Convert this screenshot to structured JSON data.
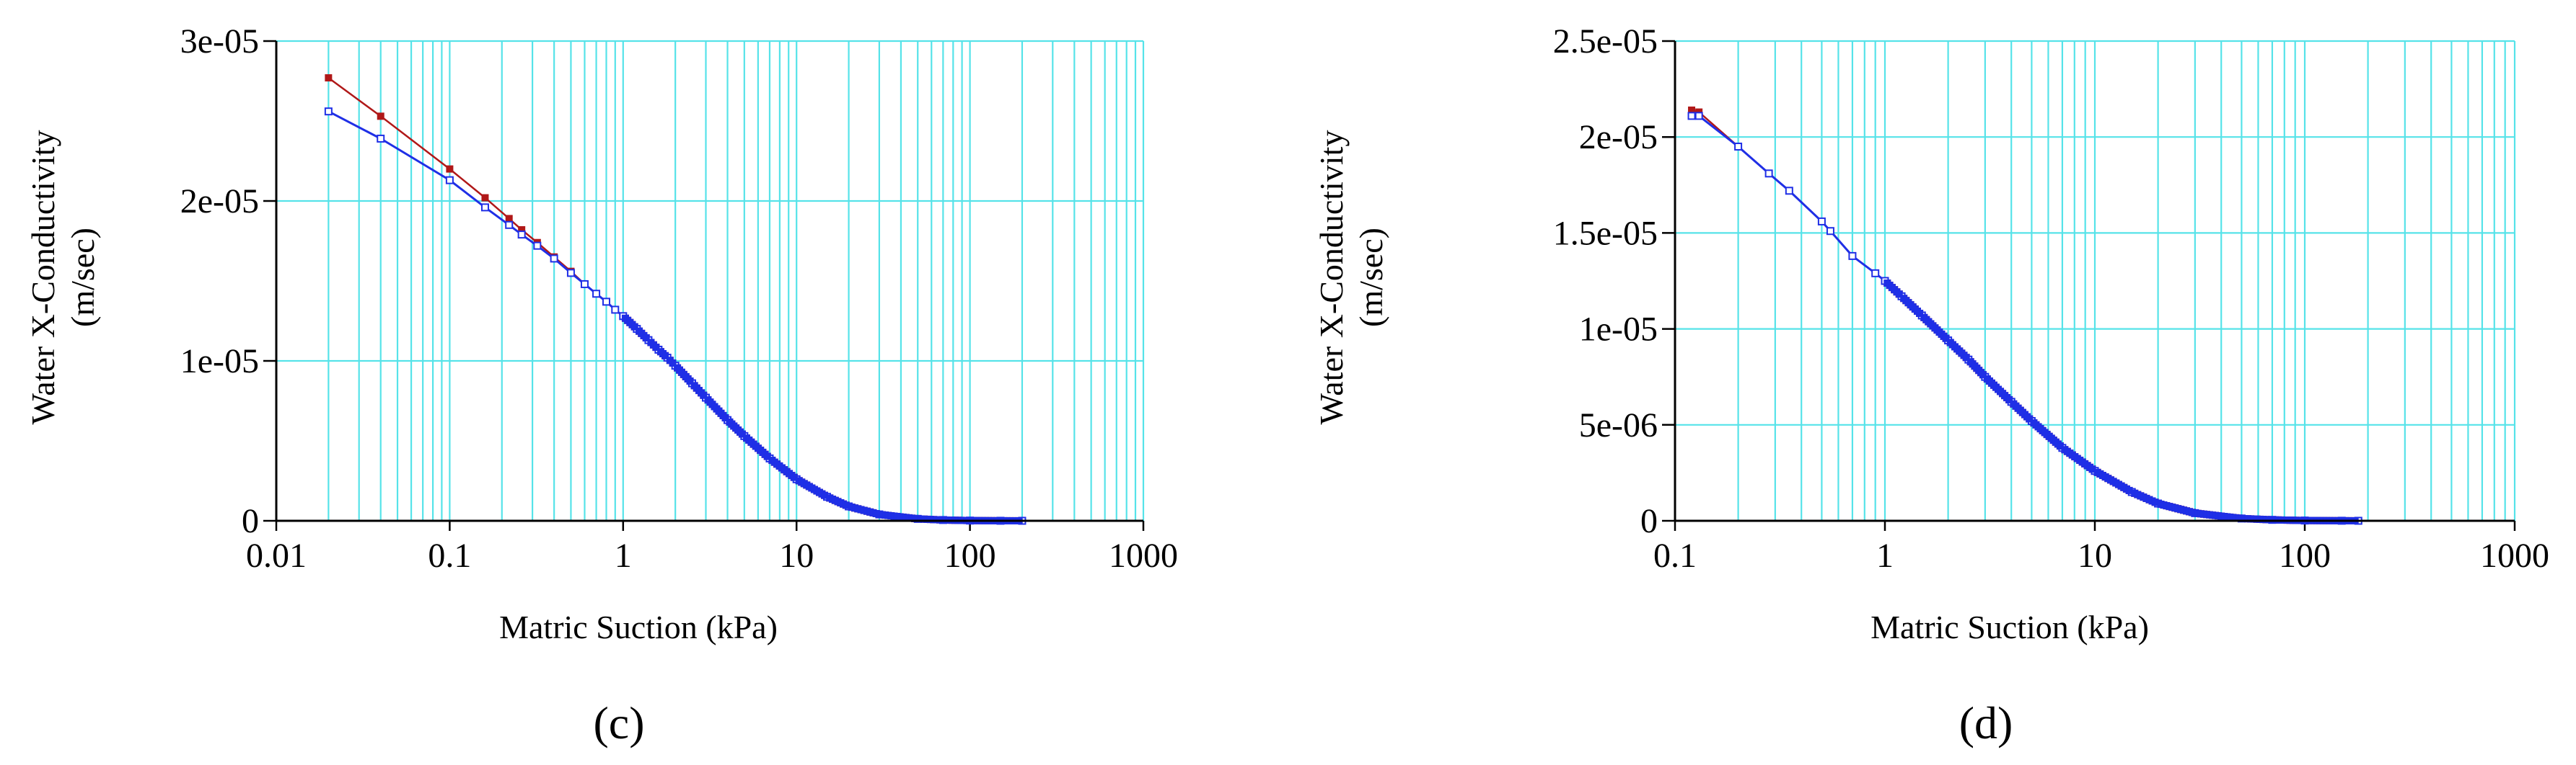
{
  "chart_data": [
    {
      "type": "line",
      "panel_label": "(c)",
      "xlabel": "Matric Suction (kPa)",
      "ylabel": [
        "Water X-Conductivity",
        "(m/sec)"
      ],
      "x_scale": "log",
      "xlim": [
        0.01,
        1000
      ],
      "ylim": [
        0,
        3e-05
      ],
      "x_ticks": [
        "0.01",
        "0.1",
        "1",
        "10",
        "100",
        "1000"
      ],
      "y_ticks": [
        "0",
        "1e-05",
        "2e-05",
        "3e-05"
      ],
      "grid": true,
      "colors": {
        "grid": "#56e3e9",
        "series_1": "#b01818",
        "series_2": "#1f2fe6"
      },
      "series": [
        {
          "marker": "filled-square",
          "x": [
            0.02,
            0.04,
            0.1,
            0.16,
            0.22,
            0.26,
            0.32,
            0.4,
            0.5,
            0.6,
            0.7,
            0.8,
            0.9,
            1.0,
            1.2,
            1.4,
            1.6,
            1.8,
            2.0,
            2.5,
            3,
            4,
            5,
            7,
            10,
            15,
            20,
            30,
            50,
            70,
            100,
            150,
            200
          ],
          "y": [
            2.77e-05,
            2.53e-05,
            2.2e-05,
            2.02e-05,
            1.89e-05,
            1.82e-05,
            1.74e-05,
            1.65e-05,
            1.56e-05,
            1.48e-05,
            1.42e-05,
            1.37e-05,
            1.32e-05,
            1.28e-05,
            1.2e-05,
            1.13e-05,
            1.07e-05,
            1.02e-05,
            9.7e-06,
            8.6e-06,
            7.7e-06,
            6.3e-06,
            5.3e-06,
            3.9e-06,
            2.6e-06,
            1.5e-06,
            9e-07,
            4e-07,
            1.2e-07,
            5e-08,
            1.5e-08,
            3e-09,
            1e-09
          ]
        },
        {
          "marker": "open-square",
          "x": [
            0.02,
            0.04,
            0.1,
            0.16,
            0.22,
            0.26,
            0.32,
            0.4,
            0.5,
            0.6,
            0.7,
            0.8,
            0.9,
            1.0,
            1.2,
            1.4,
            1.6,
            1.8,
            2.0,
            2.5,
            3,
            4,
            5,
            7,
            10,
            15,
            20,
            30,
            50,
            70,
            100,
            150,
            200
          ],
          "y": [
            2.56e-05,
            2.39e-05,
            2.13e-05,
            1.96e-05,
            1.85e-05,
            1.79e-05,
            1.72e-05,
            1.64e-05,
            1.55e-05,
            1.48e-05,
            1.42e-05,
            1.37e-05,
            1.32e-05,
            1.28e-05,
            1.2e-05,
            1.13e-05,
            1.07e-05,
            1.02e-05,
            9.7e-06,
            8.6e-06,
            7.7e-06,
            6.3e-06,
            5.3e-06,
            3.9e-06,
            2.6e-06,
            1.5e-06,
            9e-07,
            4e-07,
            1.2e-07,
            5e-08,
            1.5e-08,
            3e-09,
            1e-09
          ]
        }
      ]
    },
    {
      "type": "line",
      "panel_label": "(d)",
      "xlabel": "Matric Suction (kPa)",
      "ylabel": [
        "Water X-Conductivity",
        "(m/sec)"
      ],
      "x_scale": "log",
      "xlim": [
        0.1,
        1000
      ],
      "ylim": [
        0,
        2.5e-05
      ],
      "x_ticks": [
        "0.1",
        "1",
        "10",
        "100",
        "1000"
      ],
      "y_ticks": [
        "0",
        "5e-06",
        "1e-05",
        "1.5e-05",
        "2e-05",
        "2.5e-05"
      ],
      "grid": true,
      "colors": {
        "grid": "#56e3e9",
        "series_1": "#b01818",
        "series_2": "#1f2fe6"
      },
      "series": [
        {
          "marker": "filled-square",
          "x": [
            0.12,
            0.13,
            0.2,
            0.28,
            0.35,
            0.5,
            0.55,
            0.7,
            0.9,
            1.0,
            1.2,
            1.5,
            2,
            2.5,
            3,
            4,
            5,
            7,
            10,
            15,
            20,
            30,
            50,
            70,
            100,
            150,
            180
          ],
          "y": [
            2.14e-05,
            2.13e-05,
            1.95e-05,
            1.81e-05,
            1.72e-05,
            1.56e-05,
            1.51e-05,
            1.38e-05,
            1.29e-05,
            1.25e-05,
            1.17e-05,
            1.07e-05,
            9.4e-06,
            8.4e-06,
            7.5e-06,
            6.2e-06,
            5.2e-06,
            3.8e-06,
            2.6e-06,
            1.5e-06,
            9e-07,
            4e-07,
            1.2e-07,
            5e-08,
            1.5e-08,
            4e-09,
            1e-09
          ]
        },
        {
          "marker": "open-square",
          "x": [
            0.12,
            0.13,
            0.2,
            0.28,
            0.35,
            0.5,
            0.55,
            0.7,
            0.9,
            1.0,
            1.2,
            1.5,
            2,
            2.5,
            3,
            4,
            5,
            7,
            10,
            15,
            20,
            30,
            50,
            70,
            100,
            150,
            180
          ],
          "y": [
            2.11e-05,
            2.11e-05,
            1.95e-05,
            1.81e-05,
            1.72e-05,
            1.56e-05,
            1.51e-05,
            1.38e-05,
            1.29e-05,
            1.25e-05,
            1.17e-05,
            1.07e-05,
            9.4e-06,
            8.4e-06,
            7.5e-06,
            6.2e-06,
            5.2e-06,
            3.8e-06,
            2.6e-06,
            1.5e-06,
            9e-07,
            4e-07,
            1.2e-07,
            5e-08,
            1.5e-08,
            4e-09,
            1e-09
          ]
        }
      ]
    }
  ]
}
